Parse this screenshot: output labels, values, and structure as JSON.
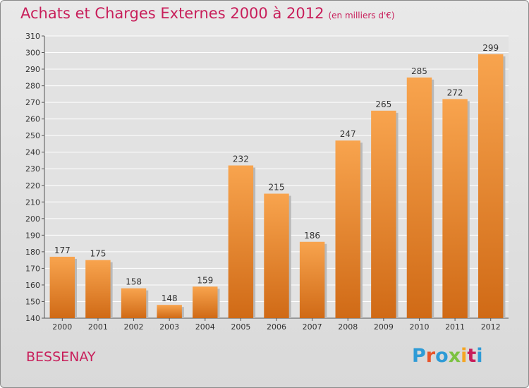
{
  "chart_data": {
    "type": "bar",
    "title": "Achats et Charges Externes 2000 à 2012",
    "subtitle": "(en milliers d'€)",
    "categories": [
      "2000",
      "2001",
      "2002",
      "2003",
      "2004",
      "2005",
      "2006",
      "2007",
      "2008",
      "2009",
      "2010",
      "2011",
      "2012"
    ],
    "values": [
      177,
      175,
      158,
      148,
      159,
      232,
      215,
      186,
      247,
      265,
      285,
      272,
      299
    ],
    "ylim": [
      140,
      310
    ],
    "yticks": [
      140,
      150,
      160,
      170,
      180,
      190,
      200,
      210,
      220,
      230,
      240,
      250,
      260,
      270,
      280,
      290,
      300,
      310
    ],
    "grid": true,
    "bar_color": "#f0963c",
    "xlabel": "",
    "ylabel": ""
  },
  "footer": {
    "city": "BESSENAY",
    "logo": "Proxiti",
    "logo_colors": [
      "#2e9bd6",
      "#e8542a",
      "#2e9bd6",
      "#7cc242",
      "#f5a623",
      "#c81e5a",
      "#2e9bd6"
    ]
  }
}
